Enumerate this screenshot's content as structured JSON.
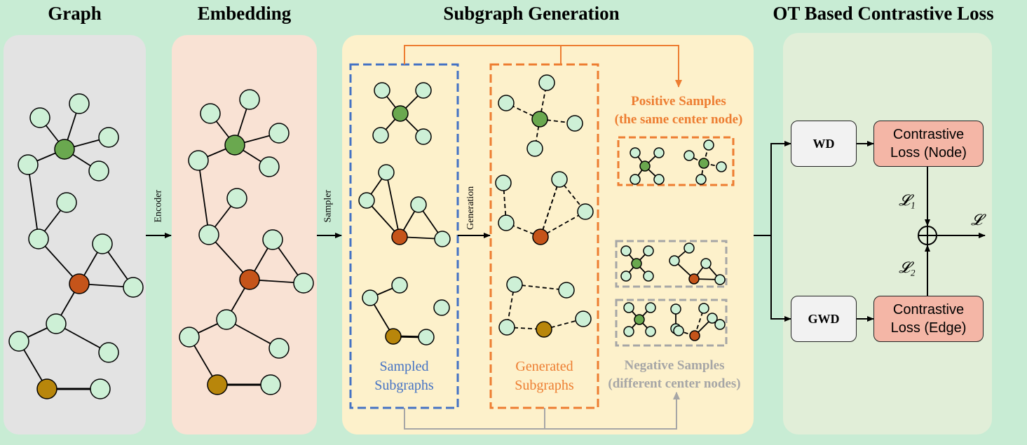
{
  "titles": {
    "graph": "Graph",
    "embedding": "Embedding",
    "subgraph": "Subgraph Generation",
    "ot": "OT Based Contrastive Loss"
  },
  "arrows": {
    "encoder": "Encoder",
    "sampler": "Sampler",
    "generation": "Generation"
  },
  "labels": {
    "sampled_1": "Sampled",
    "sampled_2": "Subgraphs",
    "generated_1": "Generated",
    "generated_2": "Subgraphs",
    "positive_1": "Positive Samples",
    "positive_2": "(the same center node)",
    "negative_1": "Negative Samples",
    "negative_2": "(different center nodes)"
  },
  "loss": {
    "wd": "WD",
    "gwd": "GWD",
    "node_1": "Contrastive",
    "node_2": "Loss (Node)",
    "edge_1": "Contrastive",
    "edge_2": "Loss (Edge)",
    "l1": "𝓛₁",
    "l2": "𝓛₂",
    "l": "𝓛",
    "oplus": "⊕"
  },
  "colors": {
    "node_light": "#cdf0d6",
    "node_green": "#6aa84f",
    "node_orange": "#c5541a",
    "node_gold": "#b8860b",
    "blue_dash": "#4472c4",
    "orange_dash": "#ed7d31",
    "gray_dash": "#a6a6a6",
    "loss_box": "#f4b6a6"
  }
}
